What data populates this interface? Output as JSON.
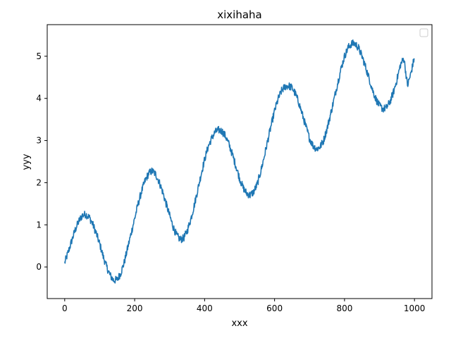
{
  "chart_data": {
    "type": "line",
    "title": "xixihaha",
    "xlabel": "xxx",
    "ylabel": "yyy",
    "xlim": [
      -50,
      1050
    ],
    "ylim": [
      -0.75,
      5.75
    ],
    "xticks": [
      0,
      200,
      400,
      600,
      800,
      1000
    ],
    "yticks": [
      0,
      1,
      2,
      3,
      4,
      5
    ],
    "grid": false,
    "legend": {
      "placement": "upper right",
      "entries": []
    },
    "series": [
      {
        "color": "#1f77b4",
        "x": [
          0,
          10,
          20,
          30,
          40,
          50,
          60,
          70,
          80,
          90,
          100,
          110,
          120,
          130,
          140,
          150,
          160,
          170,
          180,
          190,
          200,
          210,
          220,
          230,
          240,
          250,
          260,
          270,
          280,
          290,
          300,
          310,
          320,
          330,
          340,
          350,
          360,
          370,
          380,
          390,
          400,
          410,
          420,
          430,
          440,
          450,
          460,
          470,
          480,
          490,
          500,
          510,
          520,
          530,
          540,
          550,
          560,
          570,
          580,
          590,
          600,
          610,
          620,
          630,
          640,
          650,
          660,
          670,
          680,
          690,
          700,
          710,
          720,
          730,
          740,
          750,
          760,
          770,
          780,
          790,
          800,
          810,
          820,
          830,
          840,
          850,
          860,
          870,
          880,
          890,
          900,
          910,
          920,
          930,
          940,
          950,
          960,
          970,
          980,
          990,
          999
        ],
        "y": [
          0.1,
          0.35,
          0.62,
          0.88,
          1.08,
          1.22,
          1.25,
          1.18,
          1.02,
          0.8,
          0.55,
          0.25,
          0.0,
          -0.2,
          -0.32,
          -0.3,
          -0.15,
          0.1,
          0.45,
          0.8,
          1.15,
          1.5,
          1.8,
          2.05,
          2.22,
          2.28,
          2.2,
          2.02,
          1.78,
          1.5,
          1.22,
          0.95,
          0.75,
          0.65,
          0.68,
          0.85,
          1.12,
          1.45,
          1.82,
          2.2,
          2.55,
          2.85,
          3.05,
          3.2,
          3.25,
          3.22,
          3.1,
          2.9,
          2.65,
          2.38,
          2.1,
          1.88,
          1.75,
          1.7,
          1.78,
          1.95,
          2.25,
          2.6,
          2.98,
          3.35,
          3.7,
          3.98,
          4.18,
          4.28,
          4.3,
          4.25,
          4.1,
          3.88,
          3.6,
          3.32,
          3.05,
          2.88,
          2.8,
          2.85,
          3.0,
          3.28,
          3.62,
          3.98,
          4.35,
          4.7,
          5.0,
          5.2,
          5.3,
          5.3,
          5.2,
          5.0,
          4.75,
          4.48,
          4.2,
          3.98,
          3.82,
          3.75,
          3.78,
          3.92,
          4.15,
          4.45,
          4.8,
          4.95,
          4.3,
          4.6,
          4.95
        ]
      }
    ]
  }
}
